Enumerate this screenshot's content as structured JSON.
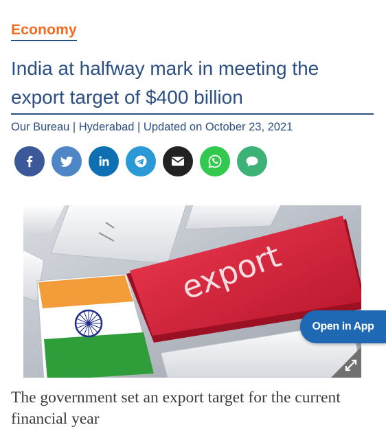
{
  "article": {
    "category": "Economy",
    "headline": "India at halfway mark in meeting the export target of $400 billion",
    "byline": "Our Bureau | Hyderabad | Updated on October 23, 2021",
    "image_caption": "The government set an export target for the current financial year"
  },
  "image": {
    "key_label": "export",
    "key_color": "#d8243a",
    "flag_colors": [
      "#f29d3a",
      "#ffffff",
      "#2f9e3a"
    ],
    "chakra_color": "#1f2d8a"
  },
  "share": [
    {
      "name": "facebook",
      "icon": "facebook-icon",
      "color": "#3b5998"
    },
    {
      "name": "twitter",
      "icon": "twitter-icon",
      "color": "#4f86c6"
    },
    {
      "name": "linkedin",
      "icon": "linkedin-icon",
      "color": "#0e6fb3"
    },
    {
      "name": "telegram",
      "icon": "telegram-icon",
      "color": "#2a99d6"
    },
    {
      "name": "email",
      "icon": "envelope-icon",
      "color": "#222222"
    },
    {
      "name": "whatsapp",
      "icon": "whatsapp-icon",
      "color": "#33c94e"
    },
    {
      "name": "comment",
      "icon": "comment-icon",
      "color": "#3cb276"
    }
  ],
  "open_in_app": {
    "label": "Open in App",
    "color": "#1f69b4"
  }
}
